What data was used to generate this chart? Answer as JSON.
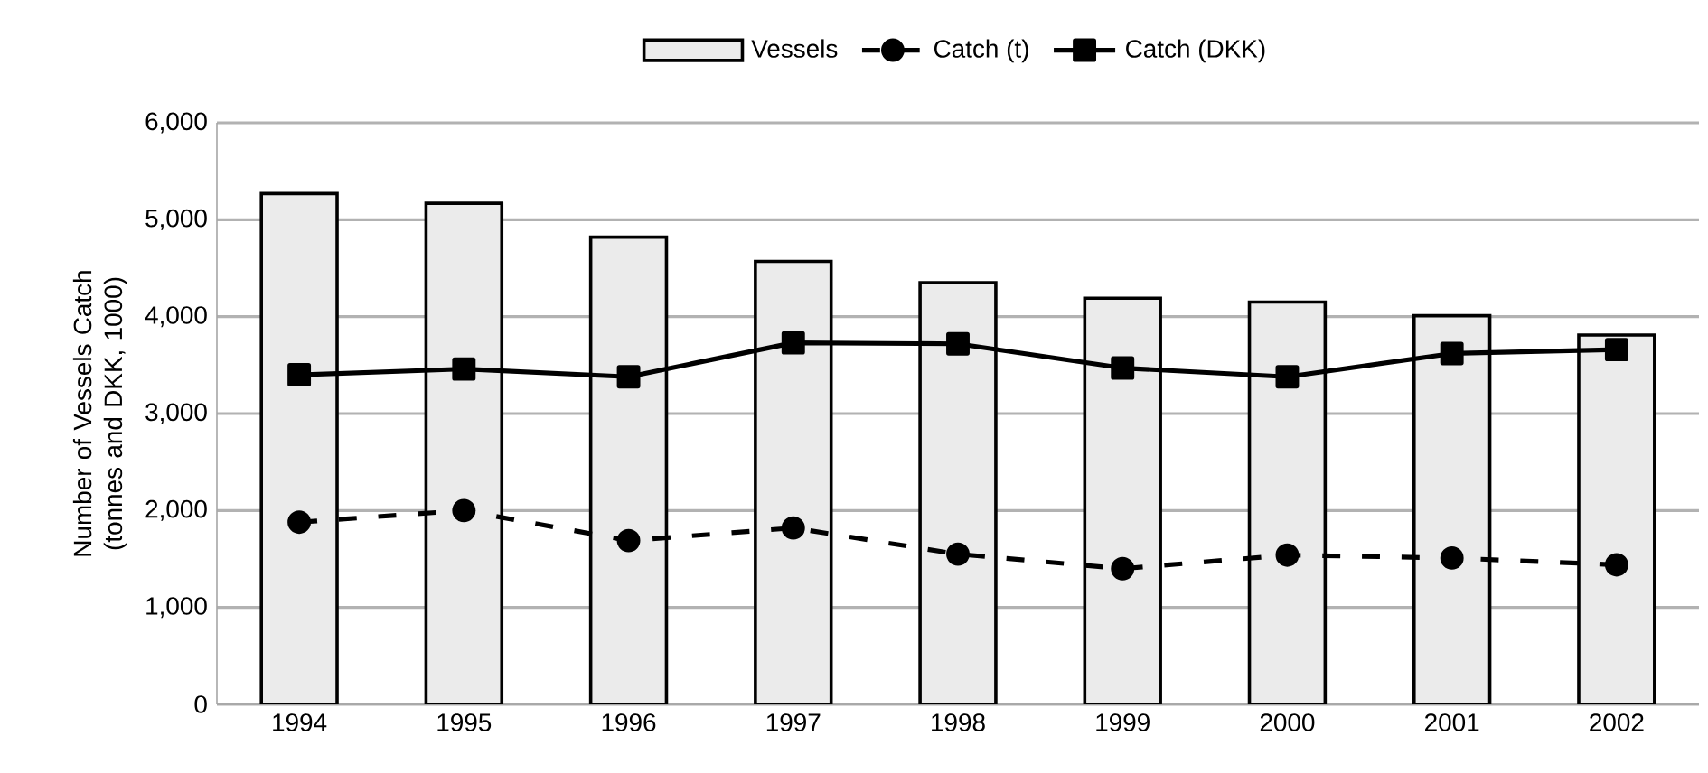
{
  "chart_data": {
    "type": "bar",
    "ylabel": "Number of Vessels Catch (tonnes and DKK, 1000)",
    "categories": [
      "1994",
      "1995",
      "1996",
      "1997",
      "1998",
      "1999",
      "2000",
      "2001",
      "2002"
    ],
    "series": [
      {
        "name": "Vessels",
        "color": "#ebebeb",
        "values": [
          5270,
          5170,
          4820,
          4570,
          4350,
          4190,
          4150,
          4010,
          3810
        ]
      },
      {
        "name": "Catch (t)",
        "type": "line",
        "color": "#000000",
        "marker": "circle",
        "line_style": "dashed",
        "values": [
          1880,
          2000,
          1690,
          1820,
          1550,
          1400,
          1540,
          1510,
          1440
        ]
      },
      {
        "name": "Catch (DKK)",
        "type": "line",
        "color": "#000000",
        "marker": "square",
        "line_style": "solid",
        "values": [
          3400,
          3460,
          3380,
          3730,
          3720,
          3470,
          3380,
          3620,
          3660
        ]
      }
    ],
    "ylim": [
      0,
      6000
    ],
    "yticks": [
      0,
      {
        "value": 1000,
        "label": "1,000"
      },
      {
        "value": 2000,
        "label": "2,000"
      },
      {
        "value": 3000,
        "label": "3,000"
      },
      {
        "value": 4000,
        "label": "4,000"
      },
      {
        "value": 5000,
        "label": "5,000"
      },
      {
        "value": 6000,
        "label": "6,000"
      }
    ],
    "grid": "y",
    "legend": "top"
  }
}
